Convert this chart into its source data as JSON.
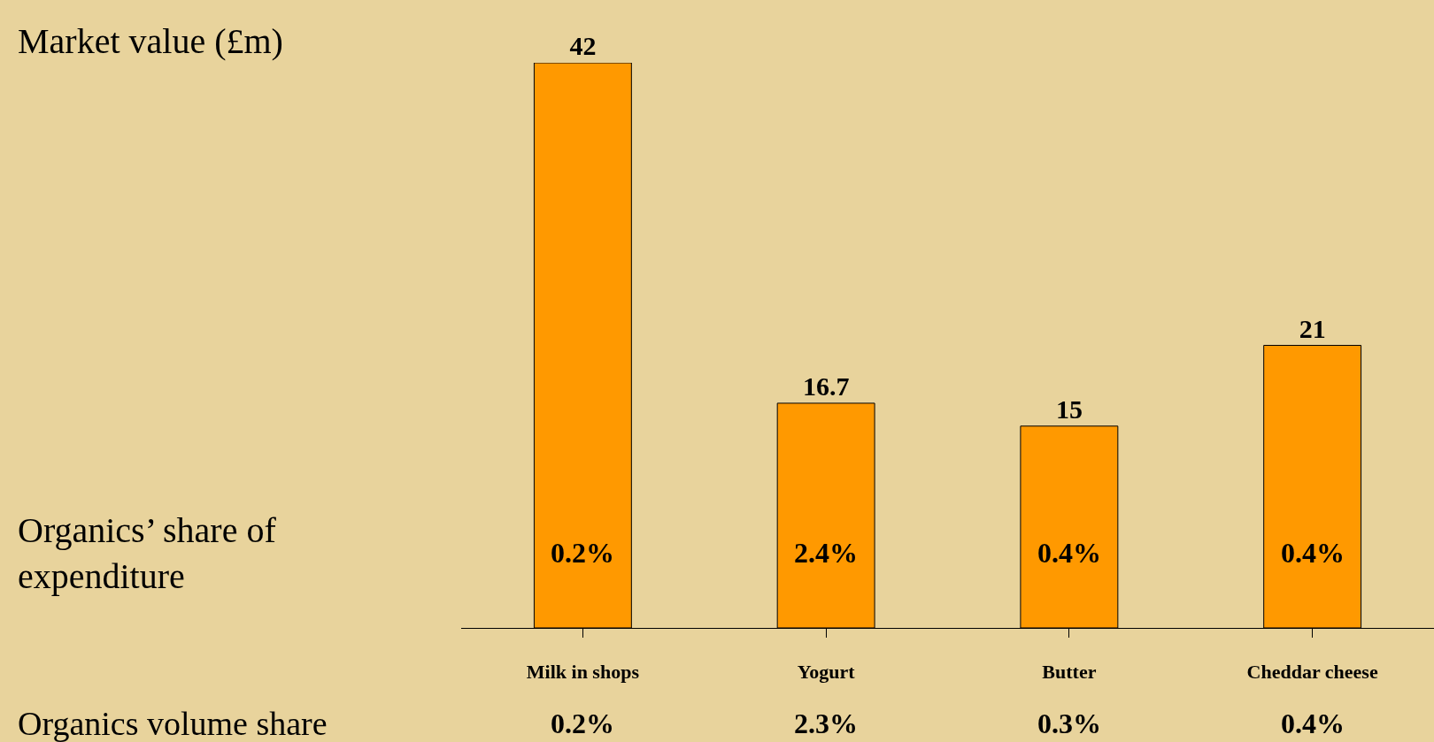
{
  "chart_data": {
    "type": "bar",
    "categories": [
      "Milk in shops",
      "Yogurt",
      "Butter",
      "Cheddar cheese"
    ],
    "series": [
      {
        "color": "#ff9900",
        "values": [
          42,
          16.7,
          15,
          21
        ]
      }
    ],
    "data_labels": true,
    "ylim": [
      0,
      42
    ],
    "tick_labels": "x",
    "annotations": [
      "Market value (£m)",
      "Organics’ share of expenditure",
      "Organics volume share",
      "0.2%",
      "2.4%",
      "0.4%",
      "0.4%",
      "0.2%",
      "2.3%",
      "0.3%",
      "0.4%"
    ]
  }
}
